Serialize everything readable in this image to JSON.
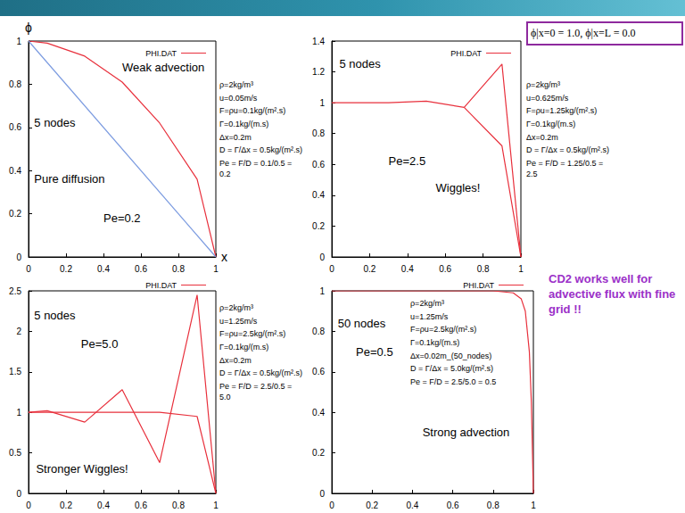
{
  "chart_data": [
    {
      "type": "line",
      "xlabel": "x",
      "ylabel": "ϕ",
      "xlim": [
        0,
        1
      ],
      "xticks": [
        0,
        0.2,
        0.4,
        0.6,
        0.8,
        1
      ],
      "ylim": [
        0,
        1
      ],
      "yticks": [
        0,
        0.2,
        0.4,
        0.6,
        0.8,
        1
      ],
      "grid": false,
      "legend": "upper right",
      "series": [
        {
          "name": "PHI.DAT",
          "color": "#e8303c",
          "x": [
            0,
            0.1,
            0.3,
            0.5,
            0.7,
            0.9,
            1
          ],
          "values": [
            1,
            0.99,
            0.93,
            0.81,
            0.62,
            0.36,
            0
          ]
        },
        {
          "color": "#7b9be0",
          "x": [
            0,
            1
          ],
          "values": [
            1,
            0
          ]
        }
      ],
      "annotations": [
        {
          "text": "5 nodes",
          "x": 0.03,
          "y": 0.62
        },
        {
          "text": "Pure diffusion",
          "x": 0.03,
          "y": 0.36
        },
        {
          "text": "Weak advection",
          "x": 0.5,
          "y": 0.88
        },
        {
          "text": "Pe=0.2",
          "x": 0.4,
          "y": 0.18
        }
      ],
      "parameters": [
        "ρ=2kg/m³",
        "u=0.05m/s",
        "F=ρu=0.1kg/(m².s)",
        "Γ=0.1kg/(m.s)",
        "Δx=0.2m",
        "D = Γ/Δx = 0.5kg/(m².s)",
        "Pe = F/D = 0.1/0.5 = 0.2"
      ]
    },
    {
      "type": "line",
      "xlim": [
        0,
        1
      ],
      "xticks": [
        0,
        0.2,
        0.4,
        0.6,
        0.8,
        1
      ],
      "ylim": [
        0,
        1.4
      ],
      "yticks": [
        0,
        0.2,
        0.4,
        0.6,
        0.8,
        1,
        1.2,
        1.4
      ],
      "grid": false,
      "legend": "upper right",
      "series": [
        {
          "name": "PHI.DAT",
          "color": "#e8303c",
          "x": [
            0,
            0.1,
            0.3,
            0.5,
            0.7,
            0.9,
            1
          ],
          "values": [
            1,
            1,
            1,
            1.01,
            0.97,
            1.25,
            0
          ]
        },
        {
          "name": "PHI.DAT",
          "color": "#e8303c",
          "x": [
            0.7,
            0.9,
            1
          ],
          "values": [
            0.97,
            0.72,
            0
          ]
        }
      ],
      "annotations": [
        {
          "text": "5 nodes",
          "x": 0.04,
          "y": 1.25
        },
        {
          "text": "Pe=2.5",
          "x": 0.3,
          "y": 0.62
        },
        {
          "text": "Wiggles!",
          "x": 0.55,
          "y": 0.45
        }
      ],
      "parameters": [
        "ρ=2kg/m³",
        "u=0.625m/s",
        "F=ρu=1.25kg/(m².s)",
        "Γ=0.1kg/(m.s)",
        "Δx=0.2m",
        "D = Γ/Δx = 0.5kg/(m².s)",
        "Pe = F/D = 1.25/0.5 = 2.5"
      ]
    },
    {
      "type": "line",
      "xlim": [
        0,
        1
      ],
      "xticks": [
        0,
        0.2,
        0.4,
        0.6,
        0.8,
        1
      ],
      "ylim": [
        0,
        2.5
      ],
      "yticks": [
        0,
        0.5,
        1,
        1.5,
        2,
        2.5
      ],
      "grid": false,
      "legend": "top right",
      "series": [
        {
          "name": "PHI.DAT",
          "color": "#e8303c",
          "x": [
            0,
            0.1,
            0.3,
            0.5,
            0.7,
            0.9,
            1
          ],
          "values": [
            1,
            1.02,
            0.88,
            1.28,
            0.38,
            2.45,
            0
          ]
        },
        {
          "name": "PHI.DAT",
          "color": "#e8303c",
          "x": [
            0,
            0.1,
            0.3,
            0.5,
            0.7,
            0.9,
            1
          ],
          "values": [
            1,
            1,
            1,
            1,
            1,
            0.95,
            0
          ]
        }
      ],
      "annotations": [
        {
          "text": "5 nodes",
          "x": 0.03,
          "y": 2.2
        },
        {
          "text": "Pe=5.0",
          "x": 0.28,
          "y": 1.85
        },
        {
          "text": "Stronger Wiggles!",
          "x": 0.04,
          "y": 0.3
        }
      ],
      "parameters": [
        "ρ=2kg/m³",
        "u=1.25m/s",
        "F=ρu=2.5kg/(m².s)",
        "Γ=0.1kg/(m.s)",
        "Δx=0.2m",
        "D = Γ/Δx = 0.5kg/(m².s)",
        "Pe = F/D = 2.5/0.5 = 5.0"
      ]
    },
    {
      "type": "line",
      "xlim": [
        0,
        1
      ],
      "xticks": [
        0,
        0.2,
        0.4,
        0.6,
        0.8,
        1
      ],
      "ylim": [
        0,
        1
      ],
      "yticks": [
        0,
        0.2,
        0.4,
        0.6,
        0.8,
        1
      ],
      "grid": false,
      "legend": "top right",
      "series": [
        {
          "name": "PHI.DAT",
          "color": "#e8303c",
          "x": [
            0,
            0.1,
            0.3,
            0.5,
            0.7,
            0.8,
            0.9,
            0.94,
            0.96,
            0.98,
            0.99,
            1
          ],
          "values": [
            1,
            1,
            1,
            1,
            1,
            1,
            0.99,
            0.96,
            0.9,
            0.7,
            0.45,
            0
          ]
        }
      ],
      "annotations": [
        {
          "text": "50 nodes",
          "x": 0.03,
          "y": 0.84
        },
        {
          "text": "Pe=0.5",
          "x": 0.12,
          "y": 0.7
        },
        {
          "text": "Strong advection",
          "x": 0.45,
          "y": 0.3
        }
      ],
      "parameters": [
        "ρ=2kg/m³",
        "u=1.25m/s",
        "F=ρu=2.5kg/(m².s)",
        "Γ=0.1kg/(m.s)",
        "Δx=0.02m_(50_nodes)",
        "D = Γ/Δx = 5.0kg/(m².s)",
        "Pe = F/D = 2.5/5.0 = 0.5"
      ]
    }
  ],
  "slide": {
    "boundary_conditions": "ϕ|x=0 = 1.0, ϕ|x=L = 0.0",
    "note": "CD2 works well for advective flux with fine grid !!"
  }
}
